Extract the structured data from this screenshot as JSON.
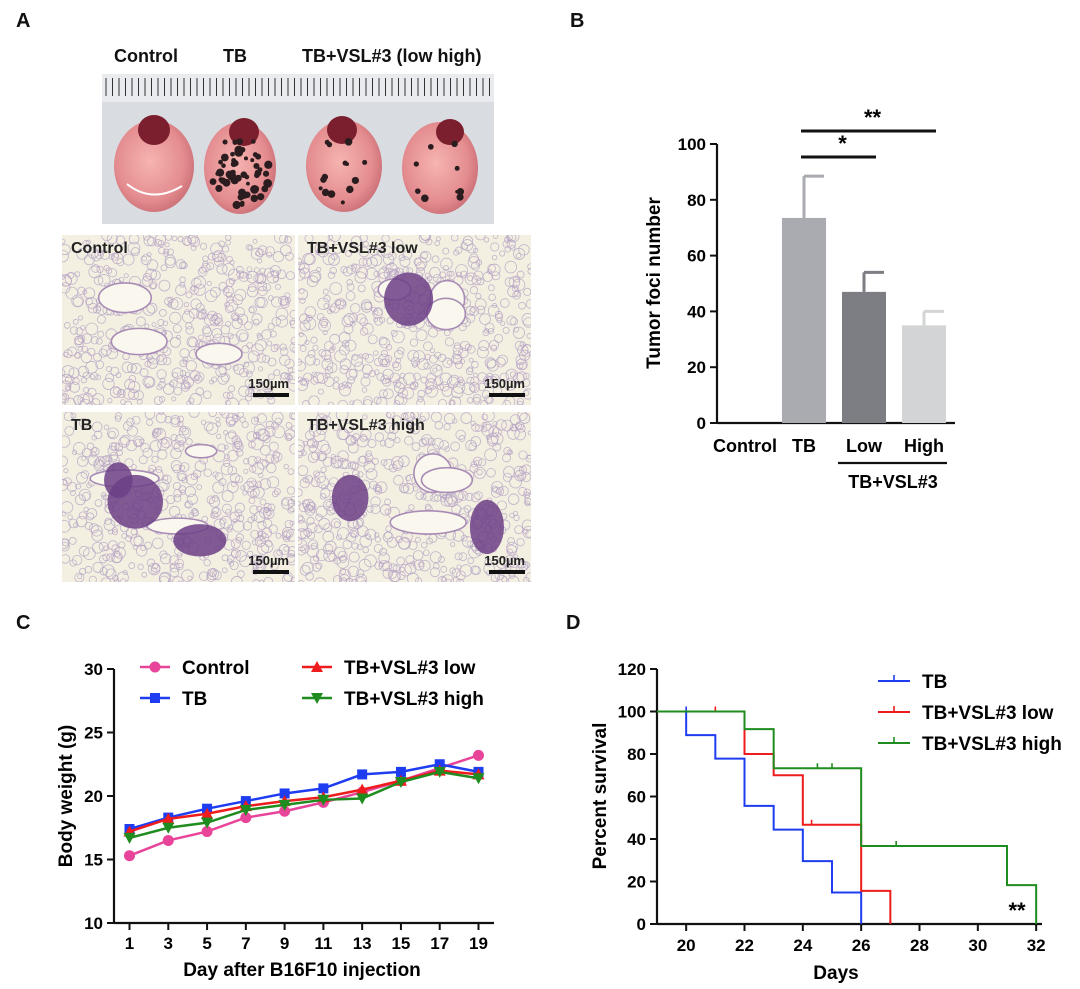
{
  "panels": {
    "a": {
      "letter": "A",
      "photo_labels": [
        "Control",
        "TB",
        "TB+VSL#3 (low high)"
      ],
      "histology": [
        {
          "label": "Control",
          "scale": "150µm"
        },
        {
          "label": "TB+VSL#3 low",
          "scale": "150µm"
        },
        {
          "label": "TB",
          "scale": "150µm"
        },
        {
          "label": "TB+VSL#3 high",
          "scale": "150µm"
        }
      ]
    },
    "b": {
      "letter": "B"
    },
    "c": {
      "letter": "C"
    },
    "d": {
      "letter": "D"
    }
  },
  "colors": {
    "tb_gray": "#a9abb1",
    "low_gray": "#7d7e83",
    "high_gray": "#d3d4d6",
    "control_pink": "#e8459a",
    "tb_blue": "#1f3df0",
    "low_red": "#ee1c1c",
    "high_green": "#1e8c1e"
  },
  "chart_data": [
    {
      "id": "B",
      "type": "bar",
      "ylabel": "Tumor foci number",
      "ylim": [
        0,
        100
      ],
      "yticks": [
        0,
        20,
        40,
        60,
        80,
        100
      ],
      "categories": [
        "Control",
        "TB",
        "Low",
        "High"
      ],
      "values": [
        0,
        73.5,
        47,
        35
      ],
      "errors": [
        0,
        15,
        7,
        5
      ],
      "group_label": "TB+VSL#3",
      "significance": [
        {
          "from": 1,
          "to": 2,
          "label": "*"
        },
        {
          "from": 1,
          "to": 3,
          "label": "**"
        }
      ]
    },
    {
      "id": "C",
      "type": "line",
      "xlabel": "Day after B16F10 injection",
      "ylabel": "Body weight (g)",
      "xlim": [
        0.2,
        19.8
      ],
      "ylim": [
        10,
        30
      ],
      "xticks": [
        1,
        3,
        5,
        7,
        9,
        11,
        13,
        15,
        17,
        19
      ],
      "yticks": [
        10,
        15,
        20,
        25,
        30
      ],
      "x": [
        1,
        3,
        5,
        7,
        9,
        11,
        13,
        15,
        17,
        19
      ],
      "series": [
        {
          "name": "Control",
          "marker": "circle",
          "values": [
            15.3,
            16.5,
            17.2,
            18.3,
            18.8,
            19.5,
            20.3,
            21.2,
            22.2,
            23.2
          ]
        },
        {
          "name": "TB",
          "marker": "square",
          "values": [
            17.4,
            18.3,
            19.0,
            19.6,
            20.2,
            20.6,
            21.7,
            21.9,
            22.5,
            21.9
          ]
        },
        {
          "name": "TB+VSL#3 low",
          "marker": "triangle-up",
          "values": [
            17.2,
            18.2,
            18.6,
            19.2,
            19.6,
            19.9,
            20.5,
            21.2,
            22.0,
            21.7
          ]
        },
        {
          "name": "TB+VSL#3 high",
          "marker": "triangle-down",
          "values": [
            16.7,
            17.5,
            17.9,
            18.9,
            19.3,
            19.7,
            19.8,
            21.1,
            21.9,
            21.4
          ]
        }
      ]
    },
    {
      "id": "D",
      "type": "line",
      "step": true,
      "xlabel": "Days",
      "ylabel": "Percent survival",
      "xlim": [
        19,
        32.2
      ],
      "ylim": [
        0,
        120
      ],
      "xticks": [
        20,
        22,
        24,
        26,
        28,
        30,
        32
      ],
      "yticks": [
        0,
        20,
        40,
        60,
        80,
        100,
        120
      ],
      "annotation": "**",
      "series": [
        {
          "name": "TB",
          "points": [
            [
              19,
              100
            ],
            [
              20,
              100
            ],
            [
              20,
              88.9
            ],
            [
              21,
              88.9
            ],
            [
              21,
              77.8
            ],
            [
              22,
              77.8
            ],
            [
              22,
              55.6
            ],
            [
              23,
              55.6
            ],
            [
              23,
              44.4
            ],
            [
              24,
              44.4
            ],
            [
              24,
              29.6
            ],
            [
              25,
              29.6
            ],
            [
              25,
              14.8
            ],
            [
              26,
              14.8
            ],
            [
              26,
              0
            ]
          ],
          "censor": [
            [
              20,
              100
            ]
          ]
        },
        {
          "name": "TB+VSL#3 low",
          "points": [
            [
              19,
              100
            ],
            [
              22,
              100
            ],
            [
              22,
              80
            ],
            [
              23,
              80
            ],
            [
              23,
              70
            ],
            [
              24,
              70
            ],
            [
              24,
              46.7
            ],
            [
              26,
              46.7
            ],
            [
              26,
              15.6
            ],
            [
              27,
              15.6
            ],
            [
              27,
              0
            ]
          ],
          "censor": [
            [
              21,
              100
            ],
            [
              24.3,
              46.7
            ]
          ]
        },
        {
          "name": "TB+VSL#3 high",
          "points": [
            [
              19,
              100
            ],
            [
              22,
              100
            ],
            [
              22,
              91.7
            ],
            [
              23,
              91.7
            ],
            [
              23,
              73.3
            ],
            [
              26,
              73.3
            ],
            [
              26,
              36.7
            ],
            [
              31,
              36.7
            ],
            [
              31,
              18.3
            ],
            [
              32,
              18.3
            ],
            [
              32,
              0
            ]
          ],
          "censor": [
            [
              24.5,
              73.3
            ],
            [
              25,
              73.3
            ],
            [
              27.2,
              36.7
            ]
          ]
        }
      ]
    }
  ]
}
